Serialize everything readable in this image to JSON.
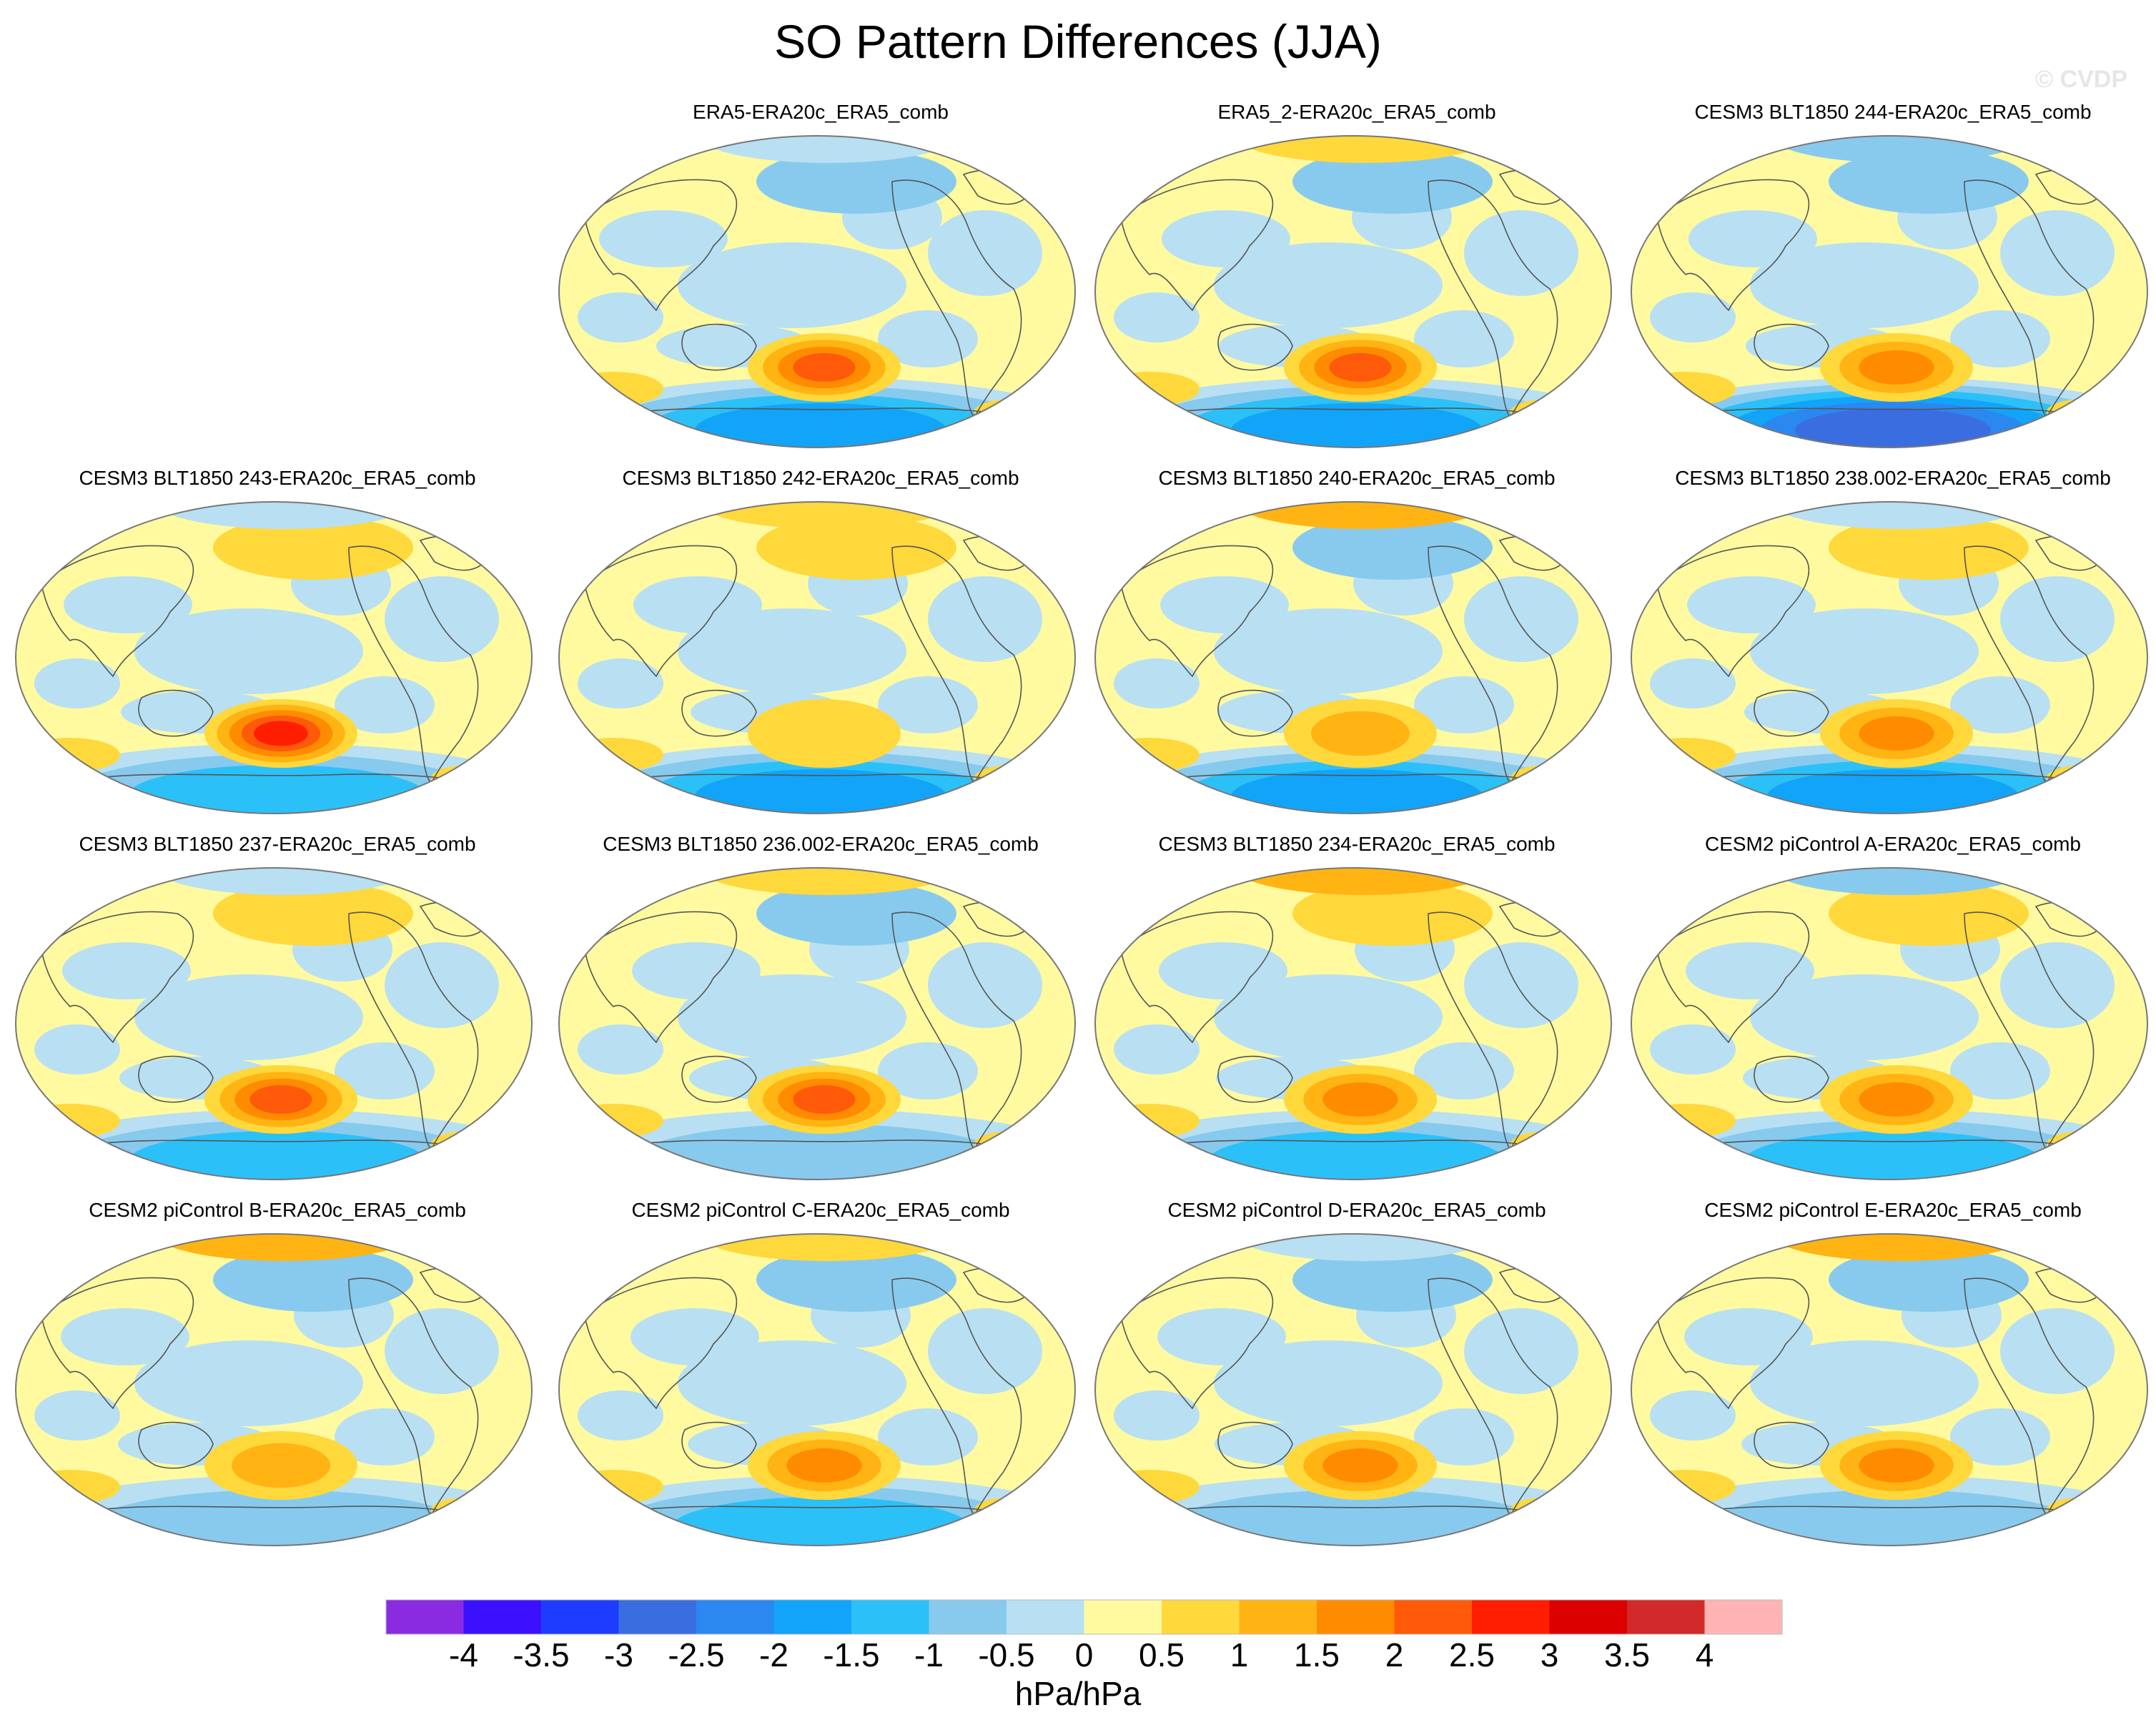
{
  "title": "SO Pattern Differences (JJA)",
  "watermark": "© CVDP",
  "panels": [
    {
      "label": "ERA5-ERA20c_ERA5_comb",
      "row": 0,
      "col": 1,
      "blob": 2.4,
      "south": -2.0,
      "north": -0.7,
      "arctic": -0.5
    },
    {
      "label": "ERA5_2-ERA20c_ERA5_comb",
      "row": 0,
      "col": 2,
      "blob": 2.5,
      "south": -2.2,
      "north": -0.8,
      "arctic": 0.9
    },
    {
      "label": "CESM3 BLT1850 244-ERA20c_ERA5_comb",
      "row": 0,
      "col": 3,
      "blob": 2.0,
      "south": -3.0,
      "north": -1.0,
      "arctic": -0.8
    },
    {
      "label": "CESM3 BLT1850 243-ERA20c_ERA5_comb",
      "row": 1,
      "col": 0,
      "blob": 2.6,
      "south": -1.5,
      "north": 0.6,
      "arctic": -0.5
    },
    {
      "label": "CESM3 BLT1850 242-ERA20c_ERA5_comb",
      "row": 1,
      "col": 1,
      "blob": 0.8,
      "south": -2.3,
      "north": 0.6,
      "arctic": 0.8
    },
    {
      "label": "CESM3 BLT1850 240-ERA20c_ERA5_comb",
      "row": 1,
      "col": 2,
      "blob": 1.2,
      "south": -2.2,
      "north": -0.6,
      "arctic": 1.2
    },
    {
      "label": "CESM3 BLT1850 238.002-ERA20c_ERA5_comb",
      "row": 1,
      "col": 3,
      "blob": 2.0,
      "south": -2.2,
      "north": 0.6,
      "arctic": -0.5
    },
    {
      "label": "CESM3 BLT1850 237-ERA20c_ERA5_comb",
      "row": 2,
      "col": 0,
      "blob": 2.3,
      "south": -1.7,
      "north": 0.6,
      "arctic": -0.5
    },
    {
      "label": "CESM3 BLT1850 236.002-ERA20c_ERA5_comb",
      "row": 2,
      "col": 1,
      "blob": 2.3,
      "south": -1.4,
      "north": -0.6,
      "arctic": 0.6
    },
    {
      "label": "CESM3 BLT1850 234-ERA20c_ERA5_comb",
      "row": 2,
      "col": 2,
      "blob": 2.0,
      "south": -1.5,
      "north": 0.6,
      "arctic": 1.0
    },
    {
      "label": "CESM2 piControl A-ERA20c_ERA5_comb",
      "row": 2,
      "col": 3,
      "blob": 2.0,
      "south": -1.8,
      "north": 0.6,
      "arctic": -0.6
    },
    {
      "label": "CESM2 piControl B-ERA20c_ERA5_comb",
      "row": 3,
      "col": 0,
      "blob": 1.2,
      "south": -1.3,
      "north": -0.6,
      "arctic": 1.0
    },
    {
      "label": "CESM2 piControl C-ERA20c_ERA5_comb",
      "row": 3,
      "col": 1,
      "blob": 1.8,
      "south": -1.6,
      "north": -0.6,
      "arctic": 0.8
    },
    {
      "label": "CESM2 piControl D-ERA20c_ERA5_comb",
      "row": 3,
      "col": 2,
      "blob": 1.6,
      "south": -1.2,
      "north": -0.6,
      "arctic": -0.5
    },
    {
      "label": "CESM2 piControl E-ERA20c_ERA5_comb",
      "row": 3,
      "col": 3,
      "blob": 1.6,
      "south": -1.2,
      "north": -0.6,
      "arctic": 1.0
    }
  ],
  "colorbar": {
    "labels": [
      "-4",
      "-3.5",
      "-3",
      "-2.5",
      "-2",
      "-1.5",
      "-1",
      "-0.5",
      "0",
      "0.5",
      "1",
      "1.5",
      "2",
      "2.5",
      "3",
      "3.5",
      "4"
    ],
    "colors": [
      "#8a2be2",
      "#3a10ff",
      "#1e3cff",
      "#3a6ee0",
      "#2a88f0",
      "#12a4f8",
      "#2cc0f8",
      "#88caee",
      "#b8e0f2",
      "#fffaa0",
      "#ffd83c",
      "#ffb414",
      "#ff8c00",
      "#ff5a0a",
      "#ff1e00",
      "#dc0000",
      "#d22a2a",
      "#ffb4b4"
    ],
    "units": "hPa/hPa"
  }
}
